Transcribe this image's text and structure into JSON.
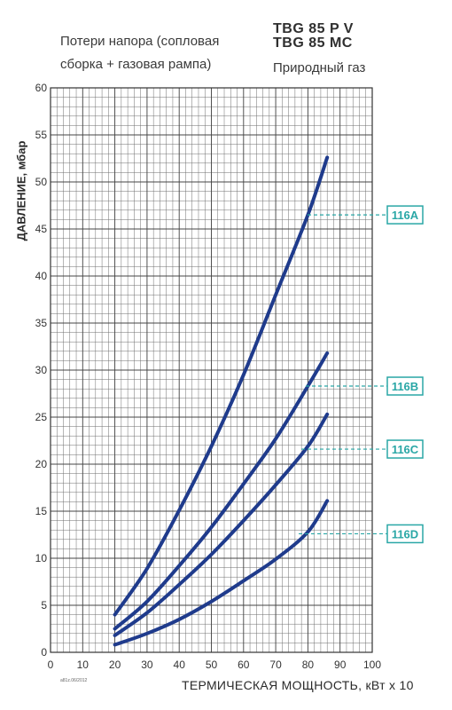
{
  "header": {
    "subtitle_line1": "Потери напора (сопловая",
    "subtitle_line2": "сборка + газовая рампа)",
    "model_line1": "TBG 85 P  V",
    "model_line2": "TBG 85 MC",
    "fuel": "Природный газ"
  },
  "footer": {
    "doc_code": "a81z.06/2012"
  },
  "colors": {
    "curve": "#1f3b8c",
    "grid": "#6e6e6e",
    "label": "#2aa7a6"
  },
  "chart_data": {
    "type": "line",
    "xlabel": "ТЕРМИЧЕСКАЯ МОЩНОСТЬ, кВт х 10",
    "ylabel": "ДАВЛЕНИЕ, мбар",
    "xlim": [
      0,
      100
    ],
    "ylim": [
      0,
      60
    ],
    "x_ticks": [
      0,
      10,
      20,
      30,
      40,
      50,
      60,
      70,
      80,
      90,
      100
    ],
    "y_ticks": [
      0,
      5,
      10,
      15,
      20,
      25,
      30,
      35,
      40,
      45,
      50,
      55,
      60
    ],
    "grid": true,
    "series": [
      {
        "name": "116A",
        "x": [
          20,
          30,
          40,
          50,
          60,
          70,
          80,
          86
        ],
        "y": [
          4.0,
          8.9,
          15.1,
          21.9,
          29.5,
          38.0,
          46.5,
          52.6
        ]
      },
      {
        "name": "116B",
        "x": [
          20,
          30,
          40,
          50,
          60,
          70,
          80,
          86
        ],
        "y": [
          2.5,
          5.4,
          9.2,
          13.3,
          17.9,
          22.7,
          28.3,
          31.8
        ]
      },
      {
        "name": "116C",
        "x": [
          20,
          30,
          40,
          50,
          60,
          70,
          80,
          86
        ],
        "y": [
          1.8,
          4.2,
          7.2,
          10.4,
          14.0,
          17.8,
          21.9,
          25.3
        ]
      },
      {
        "name": "116D",
        "x": [
          20,
          30,
          40,
          50,
          60,
          70,
          80,
          86
        ],
        "y": [
          0.8,
          2.0,
          3.5,
          5.4,
          7.6,
          9.9,
          12.8,
          16.1
        ]
      }
    ],
    "series_labels": [
      {
        "name": "116A",
        "pointer_y": 46.5
      },
      {
        "name": "116B",
        "pointer_y": 28.3
      },
      {
        "name": "116C",
        "pointer_y": 21.6
      },
      {
        "name": "116D",
        "pointer_y": 12.6
      }
    ]
  }
}
